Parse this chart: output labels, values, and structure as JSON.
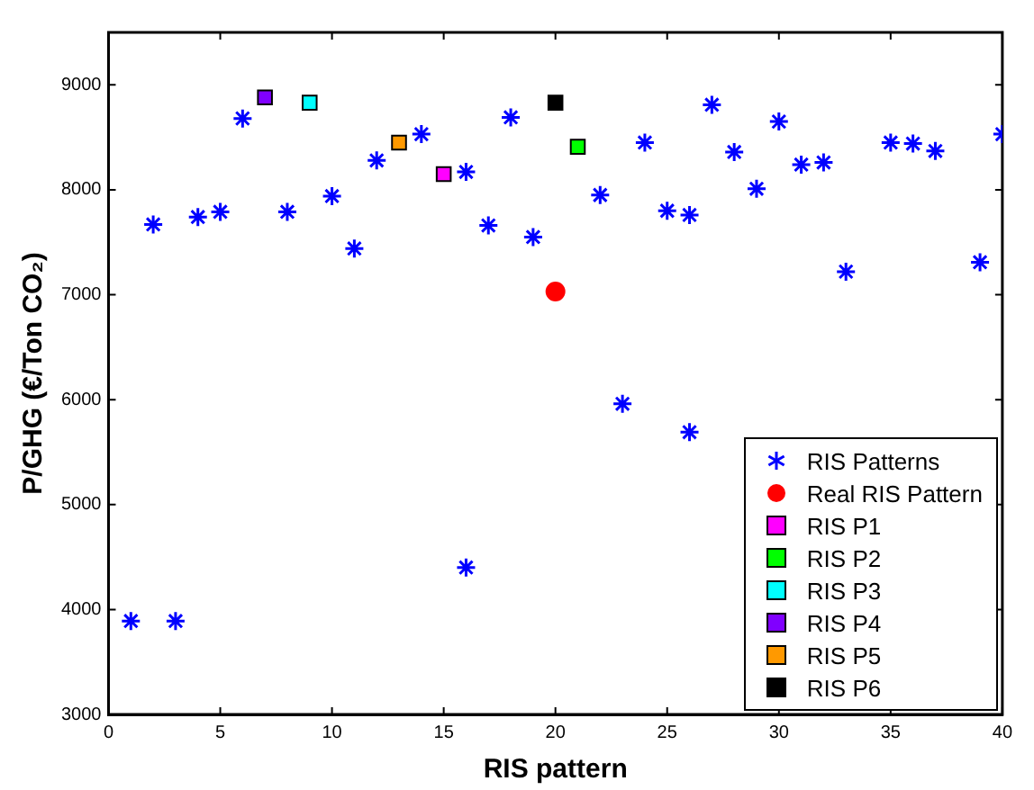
{
  "chart_data": {
    "type": "scatter",
    "xlabel": "RIS pattern",
    "ylabel": "P/GHG (€/Ton CO₂)",
    "xlim": [
      0,
      40
    ],
    "ylim": [
      3000,
      9500
    ],
    "xticks": [
      0,
      5,
      10,
      15,
      20,
      25,
      30,
      35,
      40
    ],
    "yticks": [
      3000,
      4000,
      5000,
      6000,
      7000,
      8000,
      9000
    ],
    "grid": false,
    "legend": "bottom right",
    "series": [
      {
        "name": "RIS Patterns",
        "color": "#0000ff",
        "marker": "cross",
        "x": [
          1,
          2,
          3,
          4,
          5,
          6,
          8,
          10,
          11,
          12,
          14,
          16,
          16,
          17,
          18,
          19,
          22,
          23,
          24,
          25,
          26,
          26,
          27,
          28,
          29,
          30,
          31,
          32,
          33,
          35,
          36,
          37,
          39,
          40
        ],
        "values": [
          3890,
          7670,
          3890,
          7740,
          7790,
          8680,
          7790,
          7940,
          7440,
          8280,
          8530,
          8170,
          4400,
          7660,
          8690,
          7550,
          7950,
          5960,
          8450,
          7800,
          7760,
          5690,
          8810,
          8360,
          8010,
          8650,
          8240,
          8260,
          7220,
          8450,
          8440,
          8370,
          7310,
          8530
        ]
      },
      {
        "name": "Real RIS Pattern",
        "color": "#ff0000",
        "marker": "circle",
        "x": [
          20
        ],
        "values": [
          7030
        ]
      },
      {
        "name": "RIS P1",
        "color": "#ff00ff",
        "marker": "square",
        "x": [
          15
        ],
        "values": [
          8150
        ]
      },
      {
        "name": "RIS P2",
        "color": "#00ff00",
        "marker": "square",
        "x": [
          21
        ],
        "values": [
          8410
        ]
      },
      {
        "name": "RIS P3",
        "color": "#00ffff",
        "marker": "square",
        "x": [
          9
        ],
        "values": [
          8830
        ]
      },
      {
        "name": "RIS P4",
        "color": "#8000ff",
        "marker": "square",
        "x": [
          7
        ],
        "values": [
          8880
        ]
      },
      {
        "name": "RIS P5",
        "color": "#ff9900",
        "marker": "square",
        "x": [
          13
        ],
        "values": [
          8450
        ]
      },
      {
        "name": "RIS P6",
        "color": "#000000",
        "marker": "square",
        "x": [
          20
        ],
        "values": [
          8830
        ]
      }
    ]
  }
}
